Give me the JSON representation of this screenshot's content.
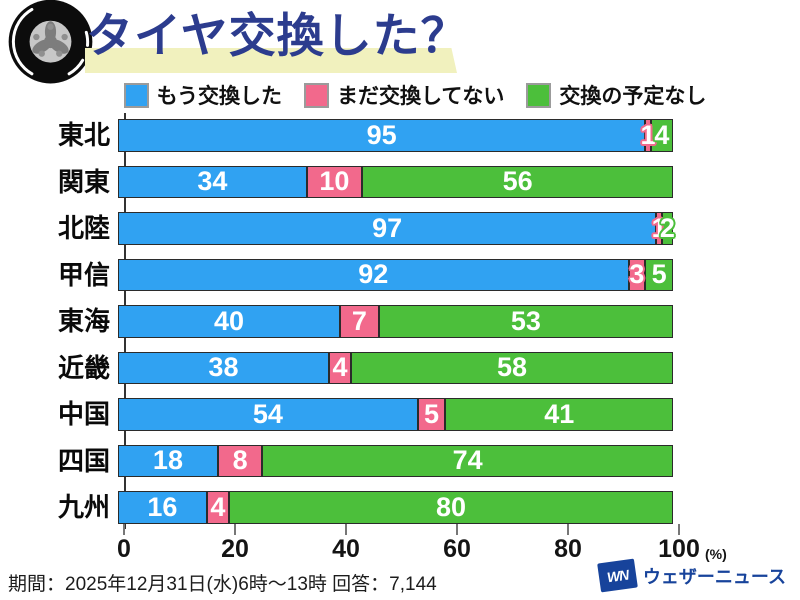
{
  "title": "タイヤ交換した？",
  "legend": [
    {
      "label": "もう交換した",
      "color": "#30a2f2"
    },
    {
      "label": "まだ交換してない",
      "color": "#f2698c"
    },
    {
      "label": "交換の予定なし",
      "color": "#4cbf3b"
    }
  ],
  "chart_data": {
    "type": "bar",
    "orientation": "horizontal",
    "stacked": true,
    "title": "タイヤ交換した？",
    "categories": [
      "東北",
      "関東",
      "北陸",
      "甲信",
      "東海",
      "近畿",
      "中国",
      "四国",
      "九州"
    ],
    "series": [
      {
        "name": "もう交換した",
        "color": "#30a2f2",
        "values": [
          95,
          34,
          97,
          92,
          40,
          38,
          54,
          18,
          16
        ]
      },
      {
        "name": "まだ交換してない",
        "color": "#f2698c",
        "values": [
          1,
          10,
          1,
          3,
          7,
          4,
          5,
          8,
          4
        ]
      },
      {
        "name": "交換の予定なし",
        "color": "#4cbf3b",
        "values": [
          4,
          56,
          2,
          5,
          53,
          58,
          41,
          74,
          80
        ]
      }
    ],
    "x_ticks": [
      0,
      20,
      40,
      60,
      80,
      100
    ],
    "x_unit": "(%)",
    "xlim": [
      0,
      100
    ],
    "grid": false,
    "legend_position": "top",
    "value_labels": "inside-white"
  },
  "footer": {
    "text": "期間：2025年12月31日(水)6時～13時 回答：7,144"
  },
  "logo": {
    "mark": "WN",
    "text": "ウェザーニュース",
    "color": "#17439b"
  },
  "colors": {
    "title": "#2c3c8e",
    "title_highlight": "#f1f1be",
    "bar_border": "#2b2b2b",
    "axis": "#333333"
  }
}
